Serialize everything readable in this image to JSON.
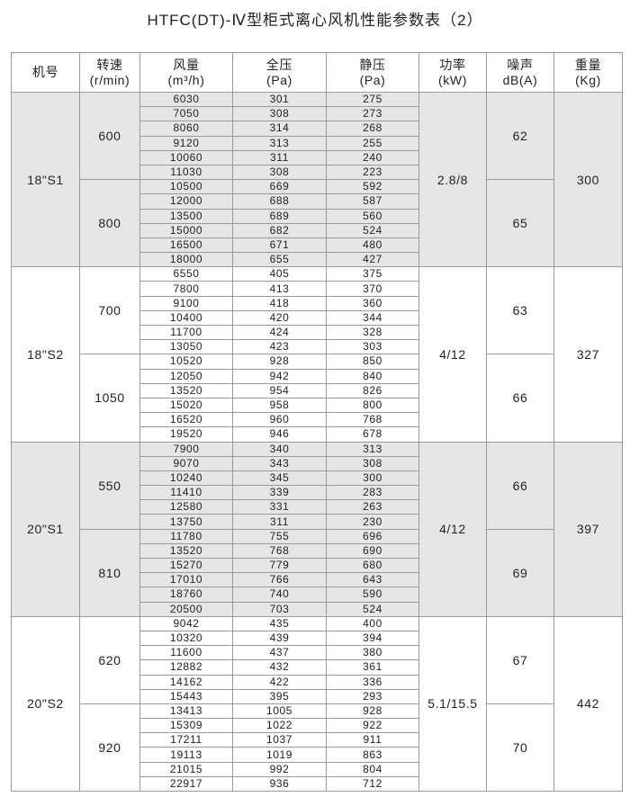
{
  "title": "HTFC(DT)-Ⅳ型柜式离心风机性能参数表（2）",
  "headers": [
    {
      "line1": "机号",
      "line2": ""
    },
    {
      "line1": "转速",
      "line2": "(r/min)"
    },
    {
      "line1": "风量",
      "line2": "(m³/h)"
    },
    {
      "line1": "全压",
      "line2": "(Pa)"
    },
    {
      "line1": "静压",
      "line2": "(Pa)"
    },
    {
      "line1": "功率",
      "line2": "(kW)"
    },
    {
      "line1": "噪声",
      "line2": "dB(A)"
    },
    {
      "line1": "重量",
      "line2": "(Kg)"
    }
  ],
  "groups": [
    {
      "model": "18\"S1",
      "power": "2.8/8",
      "weight": "300",
      "shaded": true,
      "speeds": [
        {
          "speed": "600",
          "noise": "62",
          "rows": [
            [
              "6030",
              "301",
              "275"
            ],
            [
              "7050",
              "308",
              "273"
            ],
            [
              "8060",
              "314",
              "268"
            ],
            [
              "9120",
              "313",
              "255"
            ],
            [
              "10060",
              "311",
              "240"
            ],
            [
              "11030",
              "308",
              "223"
            ]
          ]
        },
        {
          "speed": "800",
          "noise": "65",
          "rows": [
            [
              "10500",
              "669",
              "592"
            ],
            [
              "12000",
              "688",
              "587"
            ],
            [
              "13500",
              "689",
              "560"
            ],
            [
              "15000",
              "682",
              "524"
            ],
            [
              "16500",
              "671",
              "480"
            ],
            [
              "18000",
              "655",
              "427"
            ]
          ]
        }
      ]
    },
    {
      "model": "18\"S2",
      "power": "4/12",
      "weight": "327",
      "shaded": false,
      "speeds": [
        {
          "speed": "700",
          "noise": "63",
          "rows": [
            [
              "6550",
              "405",
              "375"
            ],
            [
              "7800",
              "413",
              "370"
            ],
            [
              "9100",
              "418",
              "360"
            ],
            [
              "10400",
              "420",
              "344"
            ],
            [
              "11700",
              "424",
              "328"
            ],
            [
              "13050",
              "423",
              "303"
            ]
          ]
        },
        {
          "speed": "1050",
          "noise": "66",
          "rows": [
            [
              "10520",
              "928",
              "850"
            ],
            [
              "12050",
              "942",
              "840"
            ],
            [
              "13520",
              "954",
              "826"
            ],
            [
              "15020",
              "958",
              "800"
            ],
            [
              "16520",
              "960",
              "768"
            ],
            [
              "19520",
              "946",
              "678"
            ]
          ]
        }
      ]
    },
    {
      "model": "20\"S1",
      "power": "4/12",
      "weight": "397",
      "shaded": true,
      "speeds": [
        {
          "speed": "550",
          "noise": "66",
          "rows": [
            [
              "7900",
              "340",
              "313"
            ],
            [
              "9070",
              "343",
              "308"
            ],
            [
              "10240",
              "345",
              "300"
            ],
            [
              "11410",
              "339",
              "283"
            ],
            [
              "12580",
              "331",
              "263"
            ],
            [
              "13750",
              "311",
              "230"
            ]
          ]
        },
        {
          "speed": "810",
          "noise": "69",
          "rows": [
            [
              "11780",
              "755",
              "696"
            ],
            [
              "13520",
              "768",
              "690"
            ],
            [
              "15270",
              "779",
              "680"
            ],
            [
              "17010",
              "766",
              "643"
            ],
            [
              "18760",
              "740",
              "590"
            ],
            [
              "20500",
              "703",
              "524"
            ]
          ]
        }
      ]
    },
    {
      "model": "20\"S2",
      "power": "5.1/15.5",
      "weight": "442",
      "shaded": false,
      "speeds": [
        {
          "speed": "620",
          "noise": "67",
          "rows": [
            [
              "9042",
              "435",
              "400"
            ],
            [
              "10320",
              "439",
              "394"
            ],
            [
              "11600",
              "437",
              "380"
            ],
            [
              "12882",
              "432",
              "361"
            ],
            [
              "14162",
              "422",
              "336"
            ],
            [
              "15443",
              "395",
              "293"
            ]
          ]
        },
        {
          "speed": "920",
          "noise": "70",
          "rows": [
            [
              "13413",
              "1005",
              "928"
            ],
            [
              "15309",
              "1022",
              "922"
            ],
            [
              "17211",
              "1037",
              "911"
            ],
            [
              "19113",
              "1019",
              "863"
            ],
            [
              "21015",
              "992",
              "804"
            ],
            [
              "22917",
              "936",
              "712"
            ]
          ]
        }
      ]
    }
  ]
}
